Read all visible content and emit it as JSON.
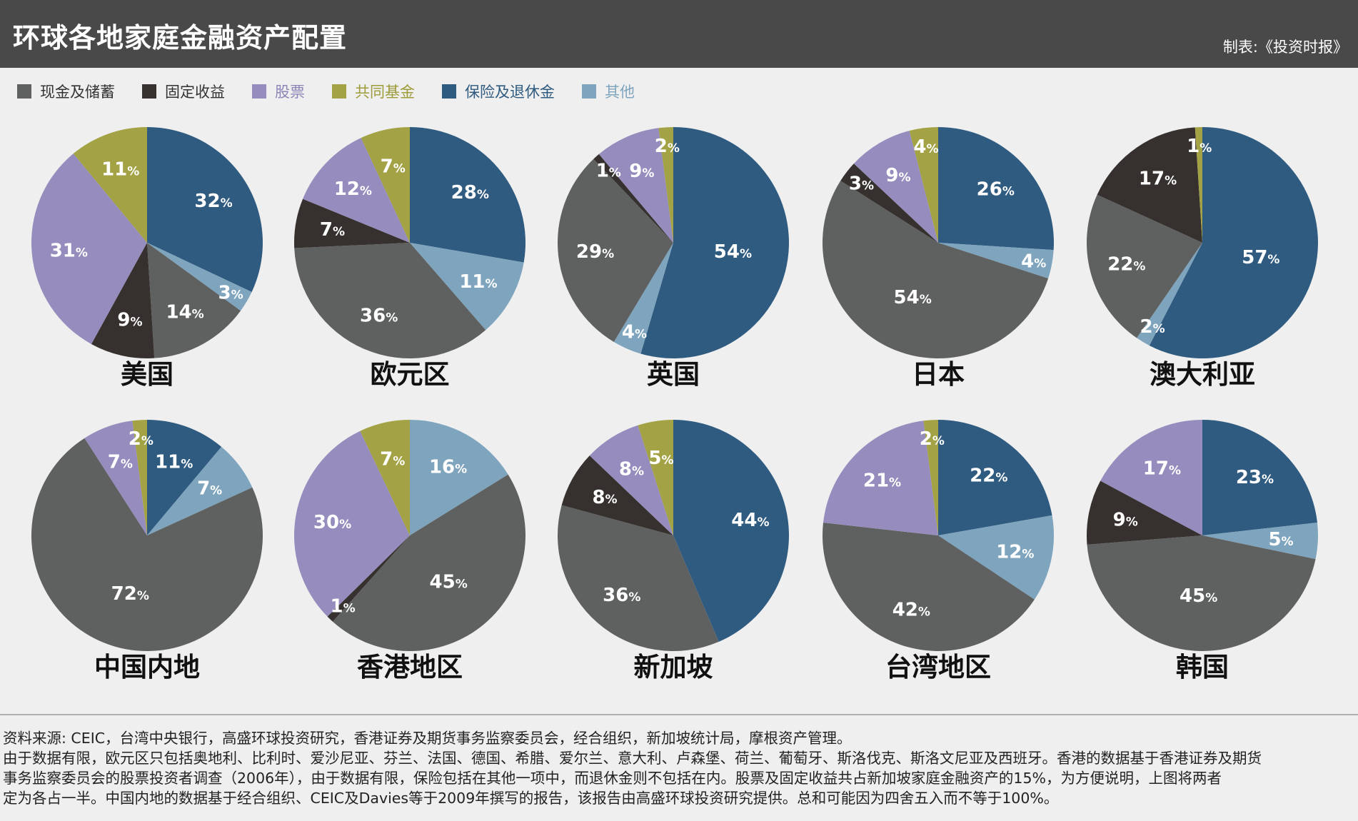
{
  "header": {
    "title": "环球各地家庭金融资产配置",
    "credit": "制表:《投资时报》"
  },
  "legend": [
    {
      "label": "现金及储蓄",
      "color": "#5f6161",
      "text_color": "#333333"
    },
    {
      "label": "固定收益",
      "color": "#36312e",
      "text_color": "#333333"
    },
    {
      "label": "股票",
      "color": "#968cbd",
      "text_color": "#8d85b8"
    },
    {
      "label": "共同基金",
      "color": "#a3a244",
      "text_color": "#9d9b3a"
    },
    {
      "label": "保险及退休金",
      "color": "#2f5b80",
      "text_color": "#2f5b80"
    },
    {
      "label": "其他",
      "color": "#7fa5be",
      "text_color": "#7fa5be"
    }
  ],
  "chart_data": [
    {
      "type": "pie",
      "title": "美国",
      "categories": [
        "现金及储蓄",
        "固定收益",
        "股票",
        "共同基金",
        "保险及退休金",
        "其他"
      ],
      "values": [
        14,
        9,
        31,
        11,
        32,
        3
      ]
    },
    {
      "type": "pie",
      "title": "欧元区",
      "categories": [
        "现金及储蓄",
        "固定收益",
        "股票",
        "共同基金",
        "保险及退休金",
        "其他"
      ],
      "values": [
        36,
        7,
        12,
        7,
        28,
        11
      ]
    },
    {
      "type": "pie",
      "title": "英国",
      "categories": [
        "现金及储蓄",
        "固定收益",
        "股票",
        "共同基金",
        "保险及退休金",
        "其他"
      ],
      "values": [
        29,
        1,
        9,
        2,
        54,
        4
      ]
    },
    {
      "type": "pie",
      "title": "日本",
      "categories": [
        "现金及储蓄",
        "固定收益",
        "股票",
        "共同基金",
        "保险及退休金",
        "其他"
      ],
      "values": [
        54,
        3,
        9,
        4,
        26,
        4
      ]
    },
    {
      "type": "pie",
      "title": "澳大利亚",
      "categories": [
        "现金及储蓄",
        "固定收益",
        "股票",
        "共同基金",
        "保险及退休金",
        "其他"
      ],
      "values": [
        22,
        17,
        0,
        1,
        57,
        2
      ]
    },
    {
      "type": "pie",
      "title": "中国内地",
      "categories": [
        "现金及储蓄",
        "固定收益",
        "股票",
        "共同基金",
        "保险及退休金",
        "其他"
      ],
      "values": [
        72,
        0,
        7,
        2,
        11,
        7
      ]
    },
    {
      "type": "pie",
      "title": "香港地区",
      "categories": [
        "现金及储蓄",
        "固定收益",
        "股票",
        "共同基金",
        "保险及退休金",
        "其他"
      ],
      "values": [
        45,
        1,
        30,
        7,
        0,
        16
      ]
    },
    {
      "type": "pie",
      "title": "新加坡",
      "categories": [
        "现金及储蓄",
        "固定收益",
        "股票",
        "共同基金",
        "保险及退休金",
        "其他"
      ],
      "values": [
        36,
        8,
        8,
        5,
        44,
        0
      ]
    },
    {
      "type": "pie",
      "title": "台湾地区",
      "categories": [
        "现金及储蓄",
        "固定收益",
        "股票",
        "共同基金",
        "保险及退休金",
        "其他"
      ],
      "values": [
        42,
        0,
        21,
        2,
        22,
        12
      ]
    },
    {
      "type": "pie",
      "title": "韩国",
      "categories": [
        "现金及储蓄",
        "固定收益",
        "股票",
        "共同基金",
        "保险及退休金",
        "其他"
      ],
      "values": [
        45,
        9,
        17,
        0,
        23,
        5
      ]
    }
  ],
  "footer": {
    "lines": [
      "资料来源: CEIC，台湾中央银行，高盛环球投资研究，香港证券及期货事务监察委员会，经合组织，新加坡统计局，摩根资产管理。",
      "由于数据有限，欧元区只包括奥地利、比利时、爱沙尼亚、芬兰、法国、德国、希腊、爱尔兰、意大利、卢森堡、荷兰、葡萄牙、斯洛伐克、斯洛文尼亚及西班牙。香港的数据基于香港证券及期货",
      "事务监察委员会的股票投资者调查（2006年），由于数据有限，保险包括在其他一项中，而退休金则不包括在内。股票及固定收益共占新加坡家庭金融资产的15%，为方便说明，上图将两者",
      "定为各占一半。中国内地的数据基于经合组织、CEIC及Davies等于2009年撰写的报告，该报告由高盛环球投资研究提供。总和可能因为四舍五入而不等于100%。"
    ]
  }
}
